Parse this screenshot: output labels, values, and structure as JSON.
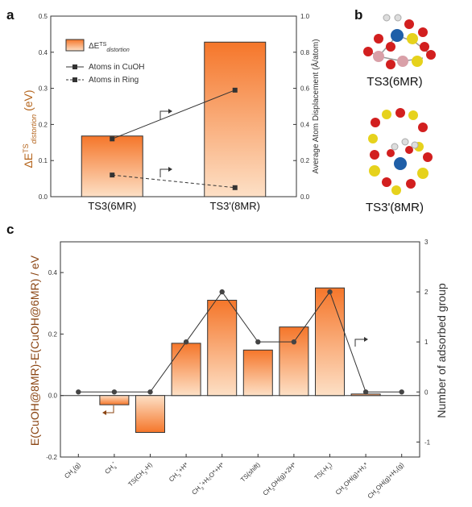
{
  "colors": {
    "bar_top": "#f5762a",
    "bar_bottom": "#fde0c6",
    "bar_edge": "#333333",
    "y_label_a": "#b5651d",
    "y_label_c": "#8b4513",
    "series": "#333333",
    "arrow": "#8b4513",
    "cu_atom": "#1f5fa8",
    "o_atom": "#d21f1f",
    "al_atom": "#e6d21c",
    "si_atom": "#d9a0a8",
    "h_atom": "#dddddd"
  },
  "panels": {
    "a": "a",
    "b": "b",
    "c": "c"
  },
  "panel_b": {
    "ts3_label": "TS3(6MR)",
    "ts3p_label": "TS3'(8MR)"
  },
  "chart_data": [
    {
      "type": "bar",
      "panel": "a",
      "categories": [
        "TS3(6MR)",
        "TS3'(8MR)"
      ],
      "values": [
        0.168,
        0.428
      ],
      "ylabel": "ΔE^TS_distortion (eV)",
      "ylim": [
        0,
        0.5
      ],
      "yticks": [
        "0.0",
        "0.1",
        "0.2",
        "0.3",
        "0.4",
        "0.5"
      ],
      "y2label": "Average Atom Displacement (Å/atom)",
      "y2lim": [
        0,
        1.0
      ],
      "y2ticks": [
        "0.0",
        "0.2",
        "0.4",
        "0.6",
        "0.8",
        "1.0"
      ],
      "legend": {
        "bar": "ΔE^TS_distortion",
        "line1": "Atoms in CuOH",
        "line2": "Atoms in Ring",
        "placement": "top-left"
      },
      "series": [
        {
          "name": "Atoms in CuOH",
          "axis": "right",
          "style": "solid",
          "values": [
            0.32,
            0.59
          ]
        },
        {
          "name": "Atoms in Ring",
          "axis": "right",
          "style": "dashed",
          "values": [
            0.12,
            0.05
          ]
        }
      ]
    },
    {
      "type": "bar",
      "panel": "c",
      "categories": [
        "CH4(g)",
        "CH4*",
        "TS(CH3-H)",
        "CH3*+H*",
        "CH3*+H2O*+H*",
        "TS(shift)",
        "CH3OH(g)+2H*",
        "TS(-H2)",
        "CH3OH(g)+H2*",
        "CH3OH(g)+H2(g)"
      ],
      "category_labels": [
        {
          "base": "CH",
          "sub": "4",
          "sup": "",
          "rest": "(g)"
        },
        {
          "base": "CH",
          "sub": "4",
          "sup": "*",
          "rest": ""
        },
        {
          "base": "TS(CH",
          "sub": "3",
          "sup": "",
          "rest": "-H)"
        },
        {
          "base": "CH",
          "sub": "3",
          "sup": "*",
          "rest": "+H*"
        },
        {
          "base": "CH",
          "sub": "3",
          "sup": "*",
          "rest": "+H₂O*+H*"
        },
        {
          "base": "TS(shift)",
          "sub": "",
          "sup": "",
          "rest": ""
        },
        {
          "base": "CH",
          "sub": "3",
          "sup": "",
          "rest": "OH(g)+2H*"
        },
        {
          "base": "TS(-H",
          "sub": "2",
          "sup": "",
          "rest": ")"
        },
        {
          "base": "CH",
          "sub": "3",
          "sup": "",
          "rest": "OH(g)+H₂*"
        },
        {
          "base": "CH",
          "sub": "3",
          "sup": "",
          "rest": "OH(g)+H₂(g)"
        }
      ],
      "values": [
        0.0,
        -0.03,
        -0.12,
        0.17,
        0.31,
        0.148,
        0.223,
        0.35,
        0.005,
        0.0
      ],
      "ylabel": "E(CuOH@8MR)-E(CuOH@6MR) / eV",
      "ylim": [
        -0.2,
        0.5
      ],
      "yticks": [
        "-0.2",
        "0.0",
        "0.2",
        "0.4"
      ],
      "y2label": "Number of adsorbed group",
      "y2lim": [
        -1.3,
        3
      ],
      "y2ticks": [
        "-1",
        "0",
        "1",
        "2",
        "3"
      ],
      "series": [
        {
          "axis": "right",
          "values": [
            0,
            0,
            0,
            1,
            2,
            1,
            1,
            2,
            0,
            0
          ]
        }
      ]
    }
  ]
}
